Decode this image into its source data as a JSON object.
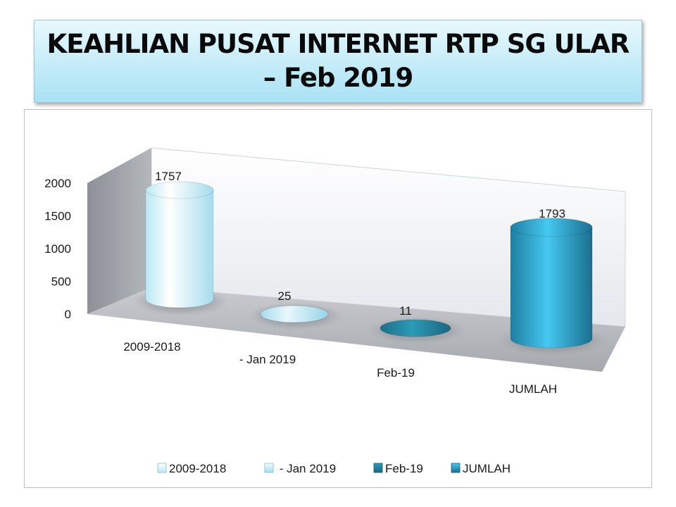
{
  "title": {
    "line1": "KEAHLIAN PUSAT INTERNET RTP SG ULAR",
    "line2": "– Feb 2019"
  },
  "chart_data": {
    "type": "bar",
    "style": "3d-cylinder",
    "categories": [
      "2009-2018",
      "- Jan 2019",
      "Feb-19",
      "JUMLAH"
    ],
    "values": [
      1757,
      25,
      11,
      1793
    ],
    "data_labels": [
      "1757",
      "25",
      "11",
      "1793"
    ],
    "yticks": [
      "0",
      "500",
      "1000",
      "1500",
      "2000"
    ],
    "ylim": [
      0,
      2000
    ],
    "grid": false,
    "legend": {
      "position": "bottom",
      "entries": [
        "2009-2018",
        " - Jan 2019",
        "Feb-19",
        "JUMLAH"
      ]
    },
    "colors": [
      "#d8f4fb",
      "#bdebf7",
      "#2a8fad",
      "#2aa3cc"
    ]
  }
}
